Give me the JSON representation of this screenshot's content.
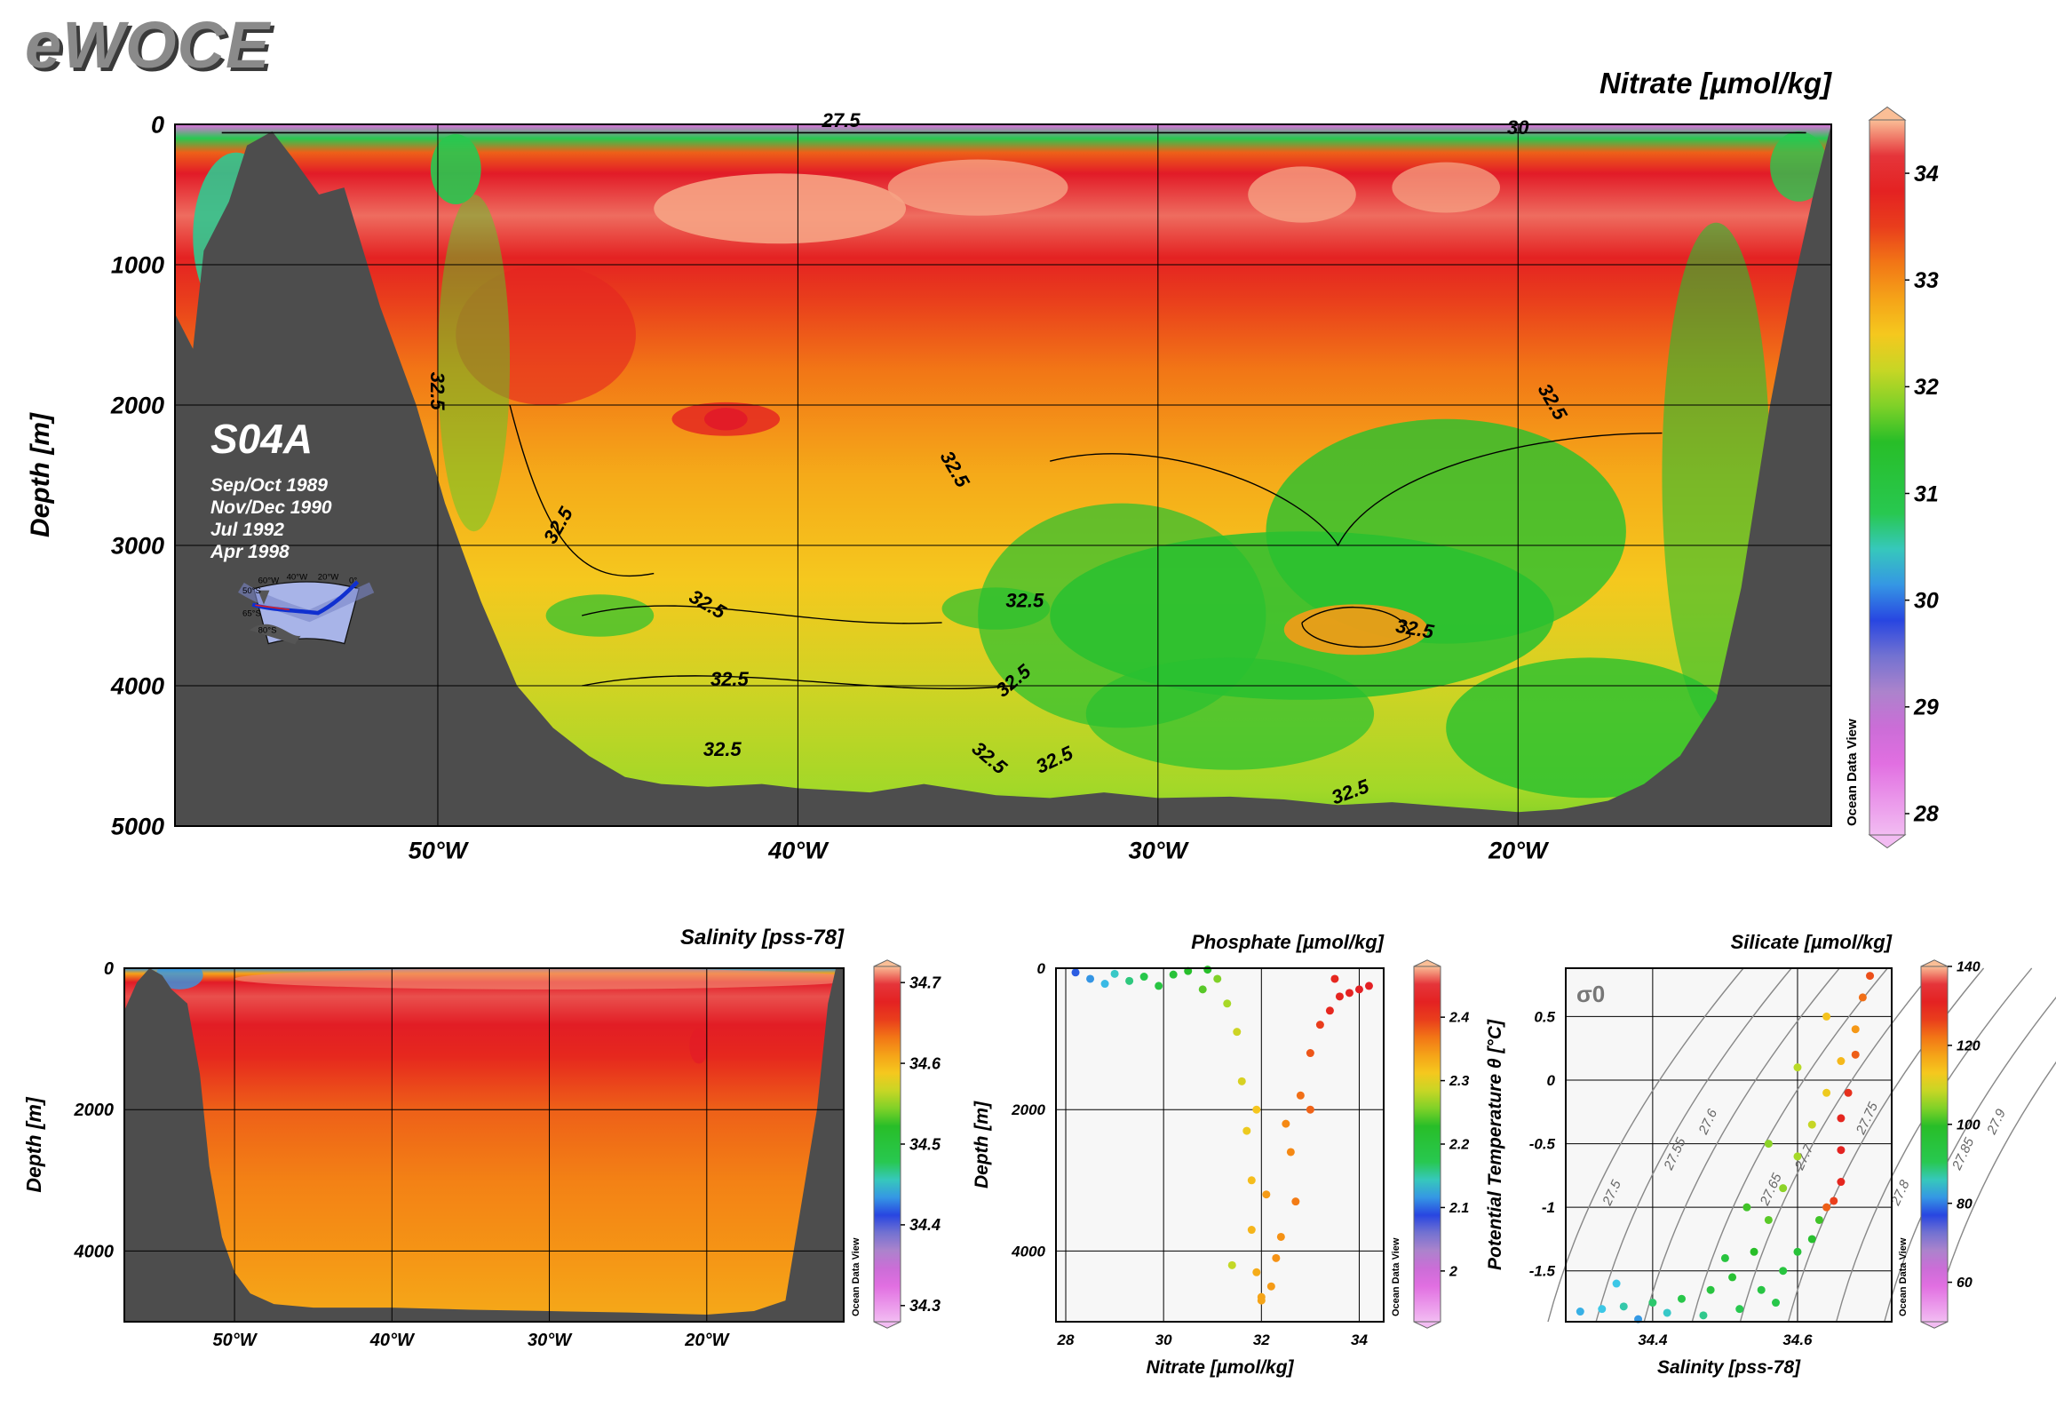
{
  "logo": "eWOCE",
  "ocean_data_view_label": "Ocean Data View",
  "main_section": {
    "title": "Nitrate [µmol/kg]",
    "section_name": "S04A",
    "cruise_dates": [
      "Sep/Oct 1989",
      "Nov/Dec 1990",
      "Jul 1992",
      "Apr 1998"
    ],
    "map_labels": [
      "60°W",
      "40°W",
      "20°W",
      "0°",
      "50°S",
      "65°S",
      "80°S"
    ]
  },
  "chart_data": [
    {
      "type": "heatmap",
      "id": "nitrate_section",
      "title": "Nitrate [µmol/kg]",
      "xlabel": "",
      "ylabel": "Depth [m]",
      "xlim": [
        -57.3,
        -11.3
      ],
      "ylim": [
        5000,
        0
      ],
      "x_ticks": [
        -50,
        -40,
        -30,
        -20
      ],
      "x_tick_labels": [
        "50°W",
        "40°W",
        "30°W",
        "20°W"
      ],
      "y_ticks": [
        0,
        1000,
        2000,
        3000,
        4000,
        5000
      ],
      "y_tick_labels": [
        "0",
        "1000",
        "2000",
        "3000",
        "4000",
        "5000"
      ],
      "grid": true,
      "colorbar": {
        "min": 27.8,
        "max": 34.5,
        "ticks": [
          28,
          29,
          30,
          31,
          32,
          33,
          34
        ],
        "tick_labels": [
          "28",
          "29",
          "30",
          "31",
          "32",
          "33",
          "34"
        ]
      },
      "contour_labels": [
        "27.5",
        "30",
        "32.5",
        "32.5",
        "32.5",
        "32.5",
        "32.5",
        "32.5",
        "32.5",
        "32.5",
        "32.5",
        "32.5",
        "32.5",
        "32.5",
        "32.5"
      ],
      "bathymetry": [
        [
          -57.3,
          1350
        ],
        [
          -56.8,
          1600
        ],
        [
          -56.5,
          900
        ],
        [
          -55.8,
          550
        ],
        [
          -55.3,
          150
        ],
        [
          -54.6,
          50
        ],
        [
          -54.0,
          250
        ],
        [
          -53.3,
          500
        ],
        [
          -52.6,
          450
        ],
        [
          -51.6,
          1300
        ],
        [
          -50.6,
          2000
        ],
        [
          -49.8,
          2700
        ],
        [
          -48.8,
          3400
        ],
        [
          -47.8,
          4000
        ],
        [
          -46.8,
          4300
        ],
        [
          -45.8,
          4500
        ],
        [
          -44.8,
          4650
        ],
        [
          -43.8,
          4700
        ],
        [
          -42.5,
          4720
        ],
        [
          -41.0,
          4700
        ],
        [
          -40.0,
          4730
        ],
        [
          -38.0,
          4760
        ],
        [
          -36.5,
          4700
        ],
        [
          -34.5,
          4780
        ],
        [
          -33.0,
          4800
        ],
        [
          -31.5,
          4760
        ],
        [
          -30.0,
          4800
        ],
        [
          -28.0,
          4790
        ],
        [
          -26.5,
          4810
        ],
        [
          -25.0,
          4850
        ],
        [
          -23.5,
          4830
        ],
        [
          -21.5,
          4870
        ],
        [
          -20.0,
          4900
        ],
        [
          -18.8,
          4880
        ],
        [
          -17.5,
          4820
        ],
        [
          -16.5,
          4700
        ],
        [
          -15.5,
          4500
        ],
        [
          -14.5,
          4100
        ],
        [
          -13.8,
          3300
        ],
        [
          -13.0,
          2000
        ],
        [
          -12.4,
          1200
        ],
        [
          -11.8,
          500
        ],
        [
          -11.3,
          0
        ]
      ]
    },
    {
      "type": "heatmap",
      "id": "salinity_section",
      "title": "Salinity [pss-78]",
      "xlabel": "",
      "ylabel": "Depth [m]",
      "xlim": [
        -57.0,
        -11.3
      ],
      "ylim": [
        5000,
        0
      ],
      "x_ticks": [
        -50,
        -40,
        -30,
        -20
      ],
      "x_tick_labels": [
        "50°W",
        "40°W",
        "30°W",
        "20°W"
      ],
      "y_ticks": [
        0,
        2000,
        4000
      ],
      "y_tick_labels": [
        "0",
        "2000",
        "4000"
      ],
      "grid": true,
      "colorbar": {
        "min": 34.28,
        "max": 34.72,
        "ticks": [
          34.3,
          34.4,
          34.5,
          34.6,
          34.7
        ],
        "tick_labels": [
          "34.3",
          "34.4",
          "34.5",
          "34.6",
          "34.7"
        ]
      },
      "bathymetry": [
        [
          -57.0,
          600
        ],
        [
          -56.2,
          200
        ],
        [
          -55.4,
          0
        ],
        [
          -54.6,
          100
        ],
        [
          -54.0,
          300
        ],
        [
          -53.0,
          500
        ],
        [
          -52.2,
          1500
        ],
        [
          -51.6,
          2800
        ],
        [
          -50.8,
          3800
        ],
        [
          -50.0,
          4300
        ],
        [
          -49.0,
          4600
        ],
        [
          -47.5,
          4750
        ],
        [
          -45.0,
          4800
        ],
        [
          -40.0,
          4800
        ],
        [
          -35.0,
          4830
        ],
        [
          -30.0,
          4850
        ],
        [
          -25.0,
          4870
        ],
        [
          -20.0,
          4900
        ],
        [
          -17.0,
          4850
        ],
        [
          -15.0,
          4700
        ],
        [
          -13.0,
          2000
        ],
        [
          -12.3,
          500
        ],
        [
          -11.8,
          0
        ]
      ]
    },
    {
      "type": "scatter",
      "id": "nitrate_vs_depth",
      "title": "Phosphate [µmol/kg]",
      "xlabel": "Nitrate [µmol/kg]",
      "ylabel": "Depth [m]",
      "xlim": [
        27.8,
        34.5
      ],
      "ylim": [
        5000,
        0
      ],
      "x_ticks": [
        28,
        30,
        32,
        34
      ],
      "x_tick_labels": [
        "28",
        "30",
        "32",
        "34"
      ],
      "y_ticks": [
        0,
        2000,
        4000
      ],
      "y_tick_labels": [
        "0",
        "2000",
        "4000"
      ],
      "grid": true,
      "color_variable": "Phosphate [µmol/kg]",
      "colorbar": {
        "min": 1.92,
        "max": 2.48,
        "ticks": [
          2.0,
          2.1,
          2.2,
          2.3,
          2.4
        ],
        "tick_labels": [
          "2",
          "2.1",
          "2.2",
          "2.3",
          "2.4"
        ]
      },
      "points": [
        [
          28.2,
          60,
          1.95
        ],
        [
          28.5,
          150,
          1.98
        ],
        [
          28.8,
          220,
          2.0
        ],
        [
          29.0,
          80,
          2.02
        ],
        [
          29.3,
          180,
          2.05
        ],
        [
          29.6,
          120,
          2.08
        ],
        [
          29.9,
          250,
          2.1
        ],
        [
          30.2,
          90,
          2.12
        ],
        [
          30.5,
          40,
          2.15
        ],
        [
          30.8,
          300,
          2.18
        ],
        [
          31.1,
          150,
          2.2
        ],
        [
          31.3,
          500,
          2.22
        ],
        [
          31.5,
          900,
          2.25
        ],
        [
          31.6,
          1600,
          2.26
        ],
        [
          31.7,
          2300,
          2.28
        ],
        [
          31.8,
          3000,
          2.3
        ],
        [
          31.8,
          3700,
          2.31
        ],
        [
          31.9,
          4300,
          2.32
        ],
        [
          32.0,
          4700,
          2.33
        ],
        [
          32.2,
          4500,
          2.34
        ],
        [
          32.4,
          3800,
          2.35
        ],
        [
          32.6,
          2600,
          2.36
        ],
        [
          32.8,
          1800,
          2.38
        ],
        [
          33.0,
          1200,
          2.4
        ],
        [
          33.2,
          800,
          2.42
        ],
        [
          33.4,
          600,
          2.44
        ],
        [
          33.6,
          400,
          2.45
        ],
        [
          33.8,
          350,
          2.46
        ],
        [
          34.0,
          300,
          2.47
        ],
        [
          34.2,
          250,
          2.47
        ],
        [
          32.1,
          3200,
          2.34
        ],
        [
          32.3,
          4100,
          2.35
        ],
        [
          31.9,
          2000,
          2.29
        ],
        [
          32.5,
          2200,
          2.36
        ],
        [
          33.0,
          2000,
          2.39
        ],
        [
          32.7,
          3300,
          2.37
        ],
        [
          32.0,
          4650,
          2.33
        ],
        [
          31.4,
          4200,
          2.24
        ],
        [
          30.9,
          20,
          2.15
        ],
        [
          33.5,
          150,
          2.44
        ]
      ]
    },
    {
      "type": "scatter",
      "id": "theta_vs_salinity",
      "title": "Silicate [µmol/kg]",
      "xlabel": "Salinity [pss-78]",
      "ylabel": "Potential Temperature θ [°C]",
      "xlim": [
        34.28,
        34.73
      ],
      "ylim": [
        -1.9,
        0.88
      ],
      "x_ticks": [
        34.4,
        34.6
      ],
      "x_tick_labels": [
        "34.4",
        "34.6"
      ],
      "y_ticks": [
        0.5,
        0,
        -0.5,
        -1,
        -1.5
      ],
      "y_tick_labels": [
        "0.5",
        "0",
        "-0.5",
        "-1",
        "-1.5"
      ],
      "grid": true,
      "color_variable": "Silicate [µmol/kg]",
      "colorbar": {
        "min": 50,
        "max": 140,
        "ticks": [
          60,
          80,
          100,
          120,
          140
        ],
        "tick_labels": [
          "60",
          "80",
          "100",
          "120",
          "140"
        ]
      },
      "isopycnal_symbol": "σ0",
      "isopycnal_labels": [
        "27.5",
        "27.55",
        "27.6",
        "27.65",
        "27.7",
        "27.75",
        "27.8",
        "27.85",
        "27.9"
      ],
      "points": [
        [
          34.3,
          -1.82,
          62
        ],
        [
          34.33,
          -1.8,
          64
        ],
        [
          34.36,
          -1.78,
          68
        ],
        [
          34.4,
          -1.75,
          72
        ],
        [
          34.44,
          -1.72,
          76
        ],
        [
          34.48,
          -1.65,
          80
        ],
        [
          34.51,
          -1.55,
          84
        ],
        [
          34.54,
          -1.35,
          88
        ],
        [
          34.56,
          -1.1,
          92
        ],
        [
          34.58,
          -0.85,
          96
        ],
        [
          34.6,
          -0.6,
          98
        ],
        [
          34.62,
          -0.35,
          102
        ],
        [
          34.64,
          -0.1,
          108
        ],
        [
          34.66,
          0.15,
          112
        ],
        [
          34.68,
          0.4,
          118
        ],
        [
          34.69,
          0.65,
          124
        ],
        [
          34.7,
          0.82,
          128
        ],
        [
          34.66,
          -0.3,
          134
        ],
        [
          34.66,
          -0.55,
          136
        ],
        [
          34.66,
          -0.8,
          134
        ],
        [
          34.65,
          -0.95,
          130
        ],
        [
          34.64,
          -1.0,
          126
        ],
        [
          34.67,
          -0.1,
          132
        ],
        [
          34.68,
          0.2,
          126
        ],
        [
          34.63,
          -1.1,
          90
        ],
        [
          34.62,
          -1.25,
          86
        ],
        [
          34.6,
          -1.35,
          82
        ],
        [
          34.58,
          -1.5,
          80
        ],
        [
          34.55,
          -1.65,
          78
        ],
        [
          34.52,
          -1.8,
          74
        ],
        [
          34.47,
          -1.85,
          70
        ],
        [
          34.42,
          -1.83,
          66
        ],
        [
          34.38,
          -1.88,
          60
        ],
        [
          34.35,
          -1.6,
          64
        ],
        [
          34.5,
          -1.4,
          80
        ],
        [
          34.53,
          -1.0,
          90
        ],
        [
          34.56,
          -0.5,
          96
        ],
        [
          34.6,
          0.1,
          100
        ],
        [
          34.64,
          0.5,
          110
        ],
        [
          34.57,
          -1.75,
          76
        ]
      ]
    }
  ]
}
